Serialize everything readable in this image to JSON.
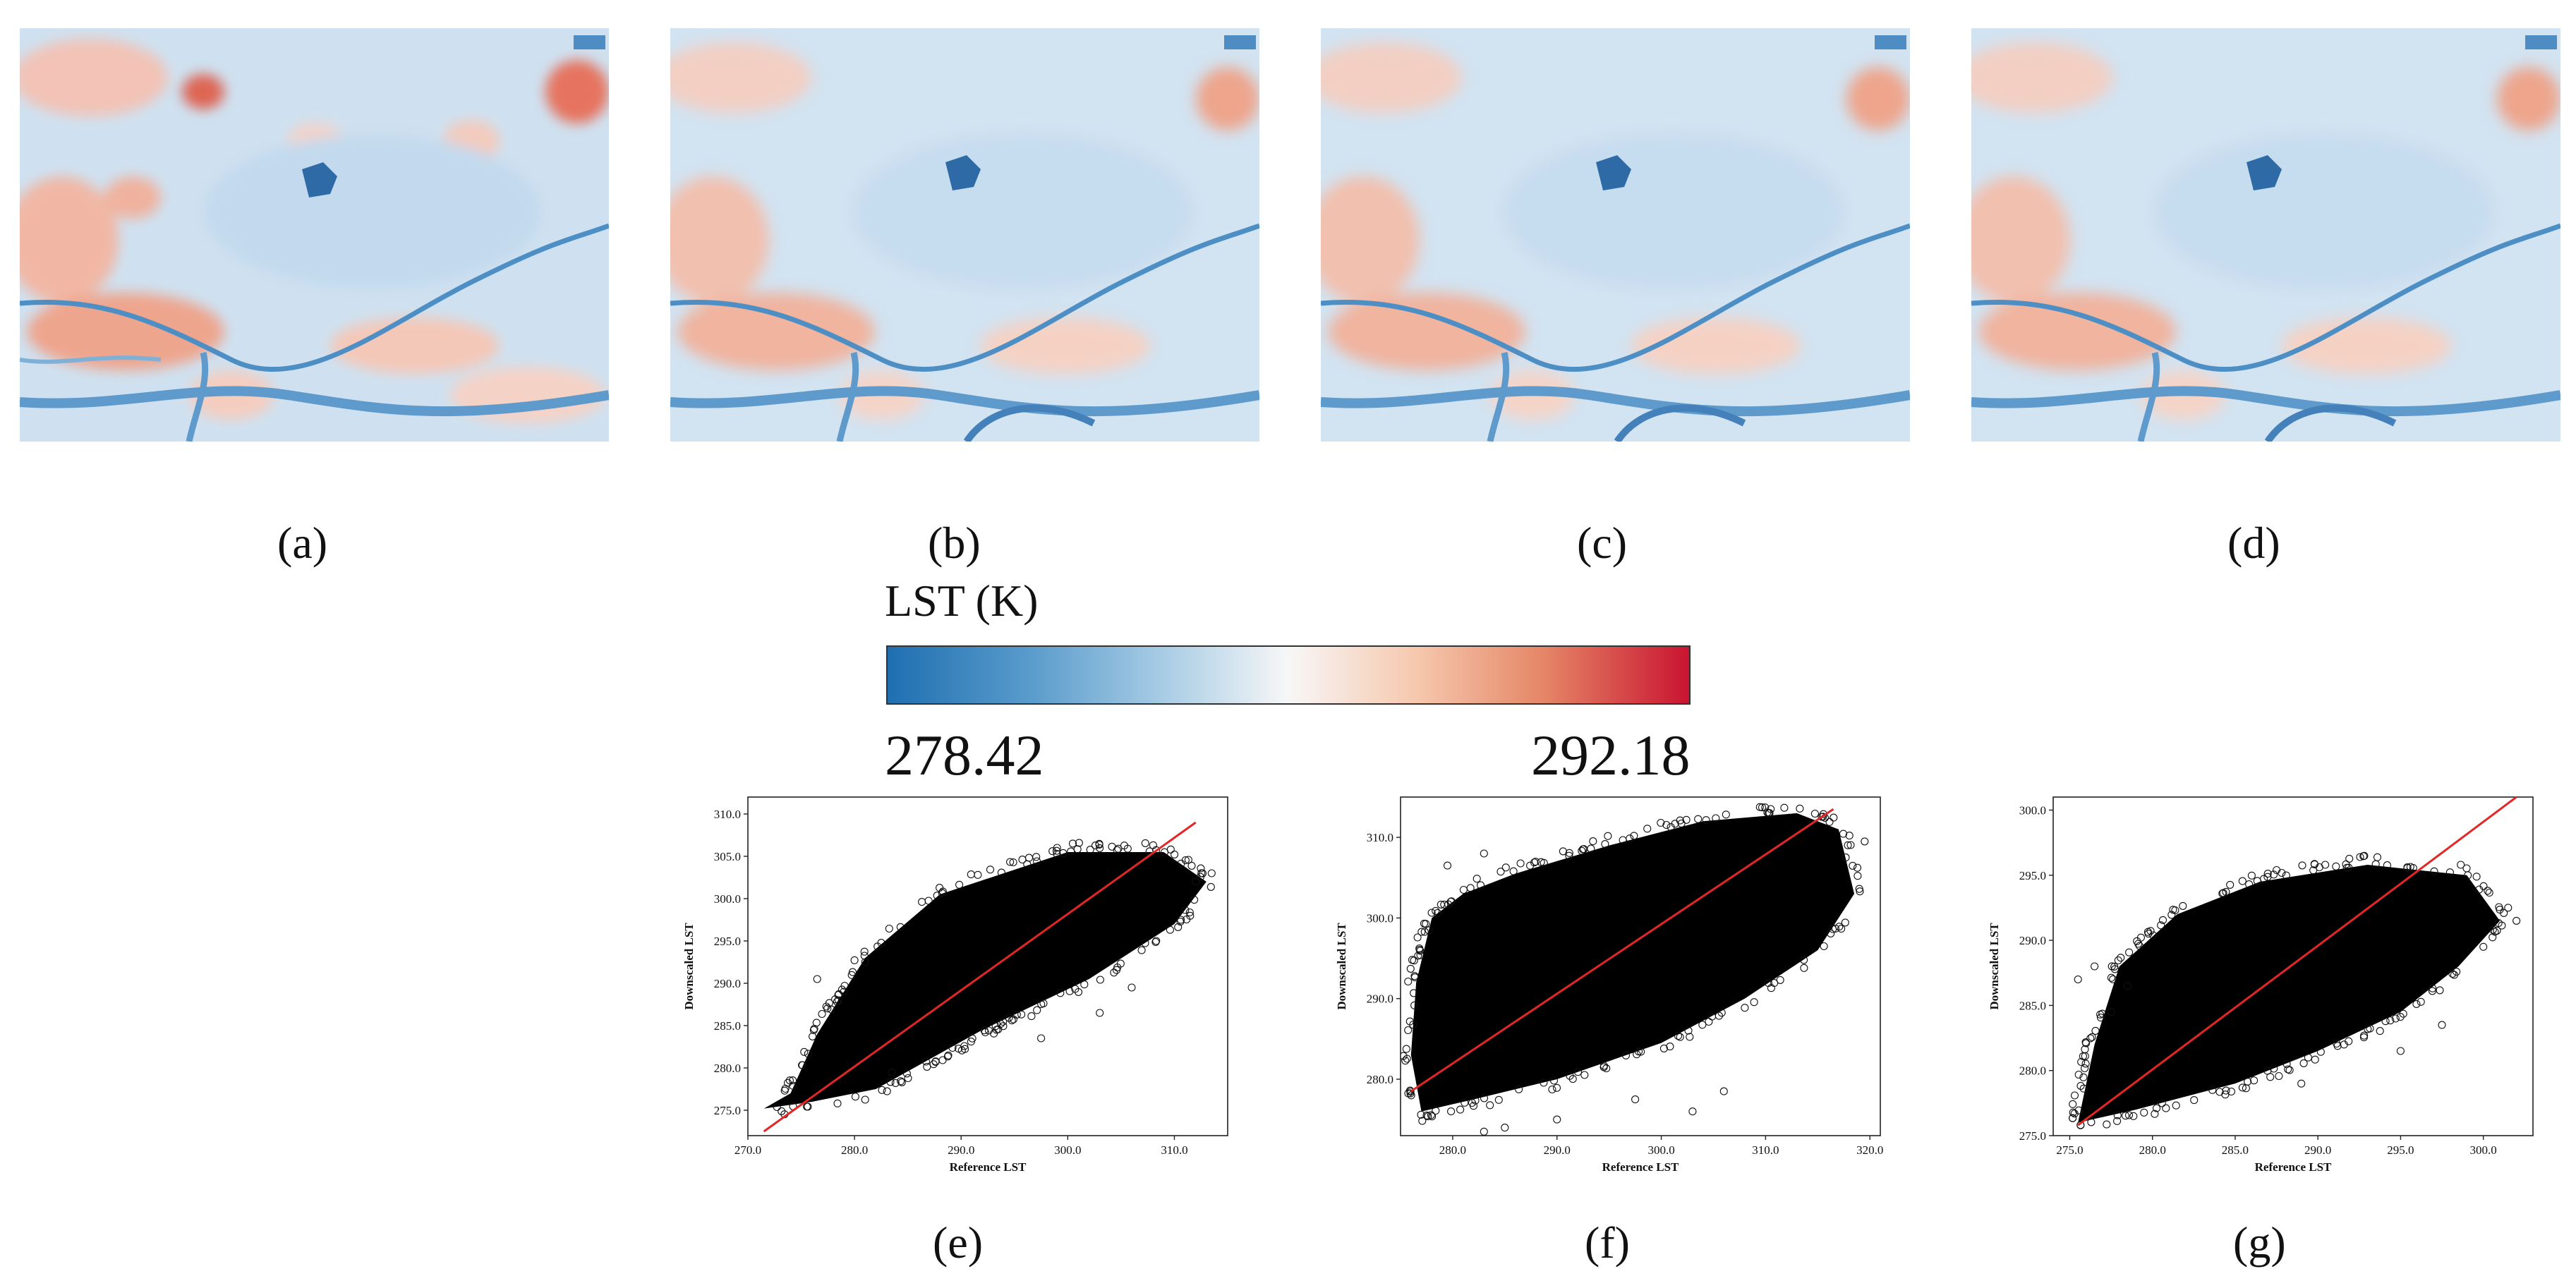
{
  "panels": {
    "a": {
      "caption": "(a)"
    },
    "b": {
      "caption": "(b)"
    },
    "c": {
      "caption": "(c)"
    },
    "d": {
      "caption": "(d)"
    },
    "e": {
      "caption": "(e)"
    },
    "f": {
      "caption": "(f)"
    },
    "g": {
      "caption": "(g)"
    }
  },
  "colorbar": {
    "title": "LST (K)",
    "min_label": "278.42",
    "max_label": "292.18",
    "colors": [
      "#1f6fb0",
      "#5a9ccc",
      "#a6cbe4",
      "#f7f7f7",
      "#f6c8ad",
      "#e58566",
      "#c91430"
    ]
  },
  "chart_data": [
    {
      "panel": "e",
      "type": "scatter",
      "xlabel": "Reference LST",
      "ylabel": "Downscaled LST",
      "xlim": [
        270,
        315
      ],
      "ylim": [
        272,
        312
      ],
      "xticks": [
        270.0,
        280.0,
        290.0,
        300.0,
        310.0
      ],
      "yticks": [
        275.0,
        280.0,
        285.0,
        290.0,
        295.0,
        300.0,
        305.0,
        310.0
      ],
      "fit_line": [
        [
          271.5,
          272.5
        ],
        [
          312.0,
          309.0
        ]
      ],
      "point_cloud_outline": [
        [
          271.5,
          275.2
        ],
        [
          276.0,
          276.0
        ],
        [
          282.0,
          277.5
        ],
        [
          292.0,
          284.5
        ],
        [
          302.0,
          290.5
        ],
        [
          310.0,
          297.0
        ],
        [
          313.0,
          302.0
        ],
        [
          309.0,
          305.5
        ],
        [
          300.0,
          305.5
        ],
        [
          288.0,
          300.5
        ],
        [
          281.0,
          293.0
        ],
        [
          276.5,
          284.0
        ],
        [
          274.0,
          277.0
        ]
      ],
      "outliers": [
        [
          276.5,
          290.5
        ],
        [
          279.0,
          289.0
        ],
        [
          283.5,
          279.5
        ],
        [
          297.5,
          283.5
        ],
        [
          303.0,
          286.5
        ],
        [
          306.0,
          289.5
        ],
        [
          299.0,
          306.0
        ],
        [
          312.0,
          302.0
        ],
        [
          313.5,
          303.0
        ],
        [
          278.5,
          288.0
        ],
        [
          281.0,
          292.5
        ]
      ]
    },
    {
      "panel": "f",
      "type": "scatter",
      "xlabel": "Reference LST",
      "ylabel": "Downscaled LST",
      "xlim": [
        275,
        321
      ],
      "ylim": [
        273,
        315
      ],
      "xticks": [
        280.0,
        290.0,
        300.0,
        310.0,
        320.0
      ],
      "yticks": [
        280.0,
        290.0,
        300.0,
        310.0
      ],
      "fit_line": [
        [
          276.0,
          278.5
        ],
        [
          316.5,
          313.5
        ]
      ],
      "point_cloud_outline": [
        [
          277.0,
          276.0
        ],
        [
          282.0,
          277.5
        ],
        [
          290.0,
          280.0
        ],
        [
          300.0,
          284.5
        ],
        [
          308.0,
          290.0
        ],
        [
          315.0,
          296.0
        ],
        [
          318.5,
          303.0
        ],
        [
          317.0,
          311.0
        ],
        [
          313.0,
          313.0
        ],
        [
          304.0,
          312.0
        ],
        [
          295.0,
          309.0
        ],
        [
          286.0,
          305.5
        ],
        [
          281.0,
          303.0
        ],
        [
          278.0,
          300.0
        ],
        [
          276.5,
          292.0
        ],
        [
          276.0,
          283.0
        ]
      ],
      "outliers": [
        [
          277.5,
          275.5
        ],
        [
          285.0,
          274.0
        ],
        [
          283.0,
          273.5
        ],
        [
          303.0,
          276.0
        ],
        [
          306.0,
          278.5
        ],
        [
          297.5,
          277.5
        ],
        [
          290.0,
          275.0
        ],
        [
          279.5,
          306.5
        ],
        [
          283.0,
          308.0
        ],
        [
          319.5,
          309.5
        ]
      ]
    },
    {
      "panel": "g",
      "type": "scatter",
      "xlabel": "Reference LST",
      "ylabel": "Downscaled LST",
      "xlim": [
        274,
        303
      ],
      "ylim": [
        275,
        301
      ],
      "xticks": [
        275.0,
        280.0,
        285.0,
        290.0,
        295.0,
        300.0
      ],
      "yticks": [
        275.0,
        280.0,
        285.0,
        290.0,
        295.0,
        300.0
      ],
      "fit_line": [
        [
          275.5,
          275.8
        ],
        [
          302.0,
          301.0
        ]
      ],
      "point_cloud_outline": [
        [
          275.5,
          276.0
        ],
        [
          279.0,
          277.0
        ],
        [
          285.0,
          279.0
        ],
        [
          290.0,
          281.5
        ],
        [
          295.0,
          284.5
        ],
        [
          298.5,
          288.0
        ],
        [
          301.0,
          291.5
        ],
        [
          299.0,
          295.0
        ],
        [
          293.0,
          295.8
        ],
        [
          286.5,
          294.5
        ],
        [
          281.5,
          292.0
        ],
        [
          278.0,
          288.0
        ],
        [
          276.5,
          282.0
        ]
      ],
      "outliers": [
        [
          275.5,
          287.0
        ],
        [
          276.5,
          288.0
        ],
        [
          277.5,
          284.5
        ],
        [
          278.5,
          286.5
        ],
        [
          289.0,
          279.0
        ],
        [
          295.0,
          281.5
        ],
        [
          301.5,
          292.5
        ],
        [
          302.0,
          291.5
        ],
        [
          300.0,
          289.5
        ],
        [
          297.5,
          283.5
        ]
      ]
    }
  ]
}
